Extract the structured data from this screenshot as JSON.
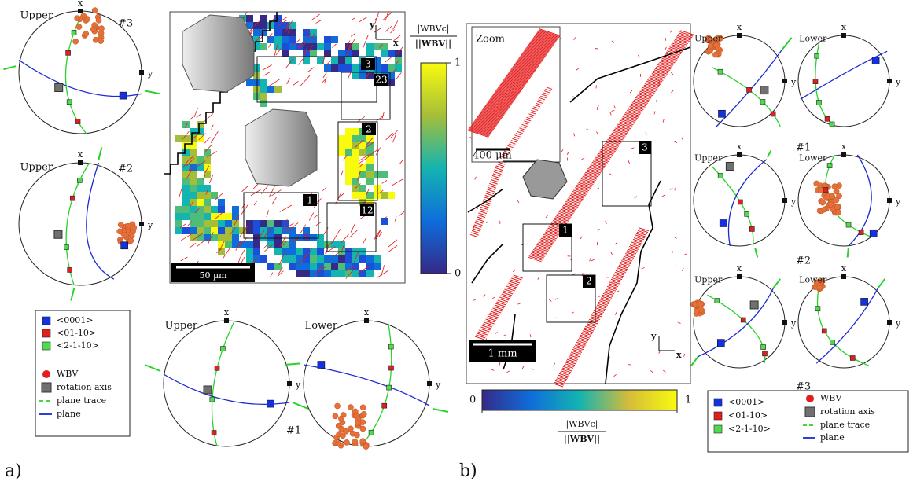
{
  "panel_a": {
    "label": "a)",
    "pole_figures": [
      {
        "hemisphere": "Upper",
        "x": "x",
        "y": "y",
        "id": "#3"
      },
      {
        "hemisphere": "Upper",
        "x": "x",
        "y": "y",
        "id": "#2"
      },
      {
        "hemisphere": "Upper",
        "x": "x",
        "y": "y"
      },
      {
        "hemisphere": "Lower",
        "x": "x",
        "y": "y",
        "id": "#1"
      }
    ],
    "map": {
      "boxes": [
        "3",
        "23",
        "2",
        "1",
        "12"
      ],
      "scale_bar": "50 µm",
      "axes": {
        "x": "x",
        "y": "y"
      }
    },
    "colorbar": {
      "label_num": "|WBVc|",
      "label_den": "||WBV||",
      "ticks": [
        1,
        0
      ]
    },
    "legend": [
      "<0001>",
      "<01-10>",
      "<2-1-10>",
      "WBV",
      "rotation axis",
      "plane trace",
      "plane"
    ]
  },
  "panel_b": {
    "label": "b)",
    "pole_figures": [
      {
        "hemisphere": "Upper",
        "x": "x",
        "y": "y"
      },
      {
        "hemisphere": "Lower",
        "x": "x",
        "y": "y",
        "id": "#1"
      },
      {
        "hemisphere": "Upper",
        "x": "x",
        "y": "y"
      },
      {
        "hemisphere": "Lower",
        "x": "x",
        "y": "y",
        "id": "#2"
      },
      {
        "hemisphere": "Upper",
        "x": "x",
        "y": "y"
      },
      {
        "hemisphere": "Lower",
        "x": "x",
        "y": "y",
        "id": "#3"
      }
    ],
    "map": {
      "zoom": "Zoom",
      "zoom_scale_bar": "400 µm",
      "scale_bar": "1 mm",
      "boxes": [
        "1",
        "2",
        "3"
      ],
      "axes": {
        "x": "x",
        "y": "y"
      }
    },
    "colorbar": {
      "label_num": "|WBVc|",
      "label_den": "||WBV||",
      "ticks": [
        0,
        1
      ]
    },
    "legend": [
      "<0001>",
      "<01-10>",
      "<2-1-10>",
      "WBV",
      "rotation axis",
      "plane trace",
      "plane"
    ]
  }
}
